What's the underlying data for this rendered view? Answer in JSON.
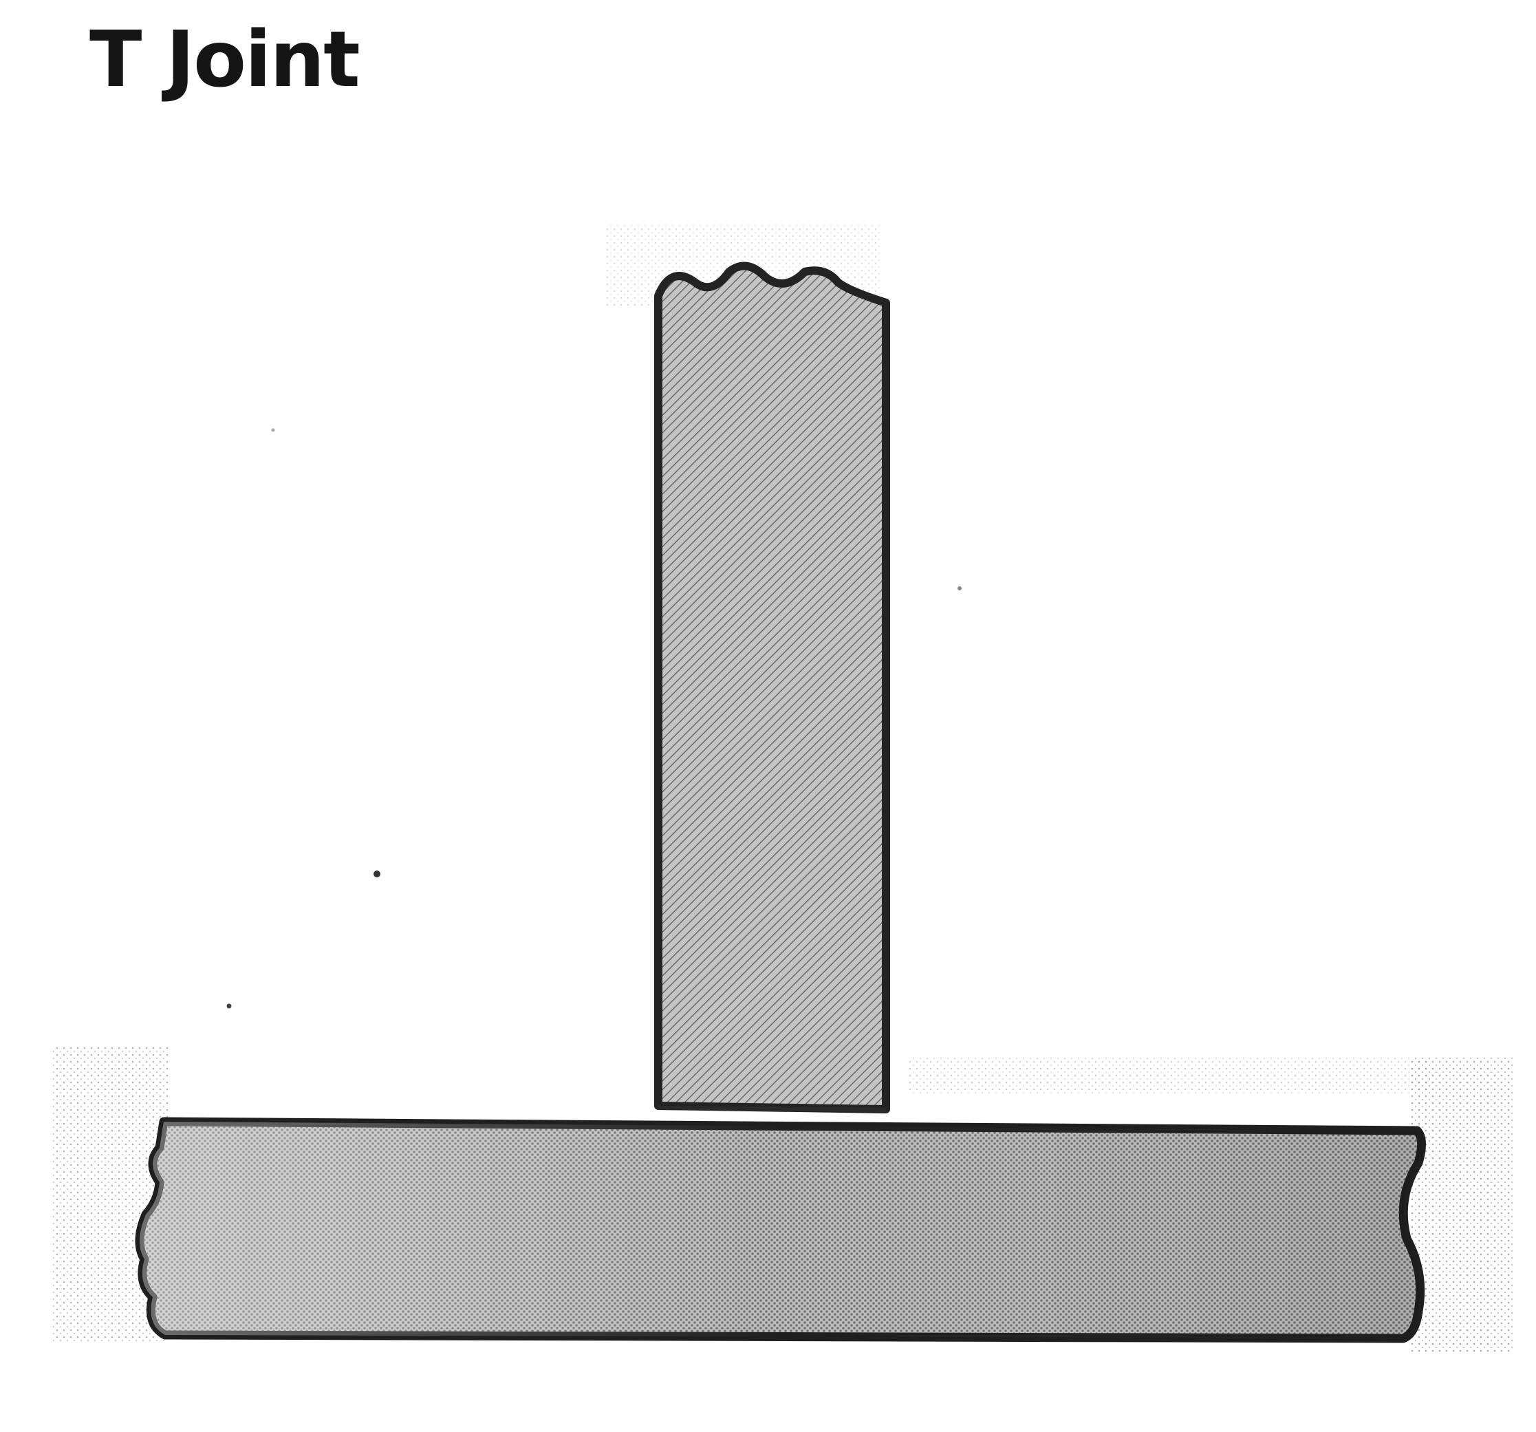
{
  "title": "T Joint",
  "colors": {
    "background": "#ffffff",
    "outline": "#222222",
    "fill_vertical": "#bdbdbd",
    "fill_horizontal": "#b3b3b3",
    "hatch": "#555555",
    "title": "#151515"
  }
}
